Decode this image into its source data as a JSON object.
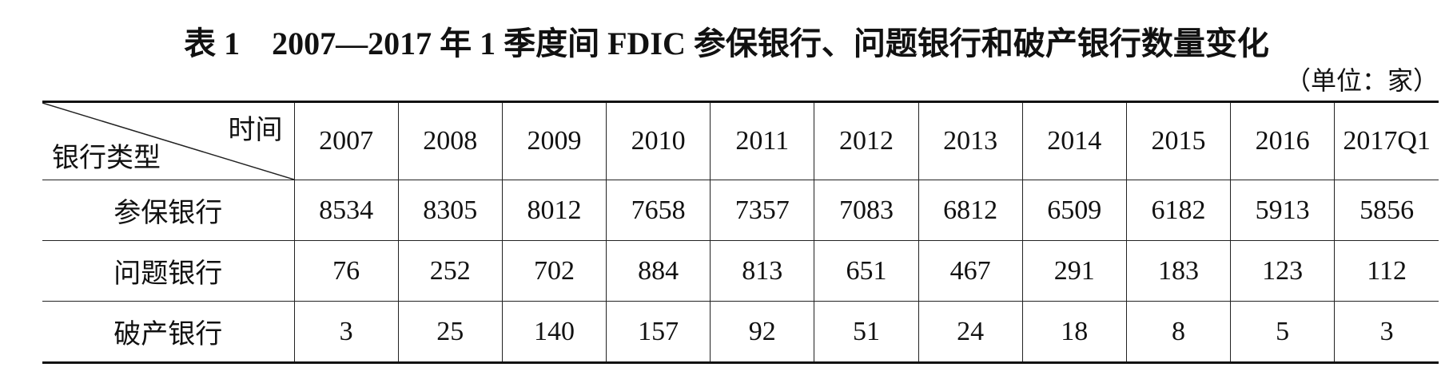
{
  "title": {
    "label": "表 1",
    "text": "2007—2017 年 1 季度间 FDIC 参保银行、问题银行和破产银行数量变化"
  },
  "unit": "（单位：家）",
  "table": {
    "corner": {
      "column_header": "时间",
      "row_header": "银行类型"
    },
    "columns": [
      "2007",
      "2008",
      "2009",
      "2010",
      "2011",
      "2012",
      "2013",
      "2014",
      "2015",
      "2016",
      "2017Q1"
    ],
    "rows": [
      {
        "label": "参保银行",
        "values": [
          8534,
          8305,
          8012,
          7658,
          7357,
          7083,
          6812,
          6509,
          6182,
          5913,
          5856
        ]
      },
      {
        "label": "问题银行",
        "values": [
          76,
          252,
          702,
          884,
          813,
          651,
          467,
          291,
          183,
          123,
          112
        ]
      },
      {
        "label": "破产银行",
        "values": [
          3,
          25,
          140,
          157,
          92,
          51,
          24,
          18,
          8,
          5,
          3
        ]
      }
    ]
  }
}
